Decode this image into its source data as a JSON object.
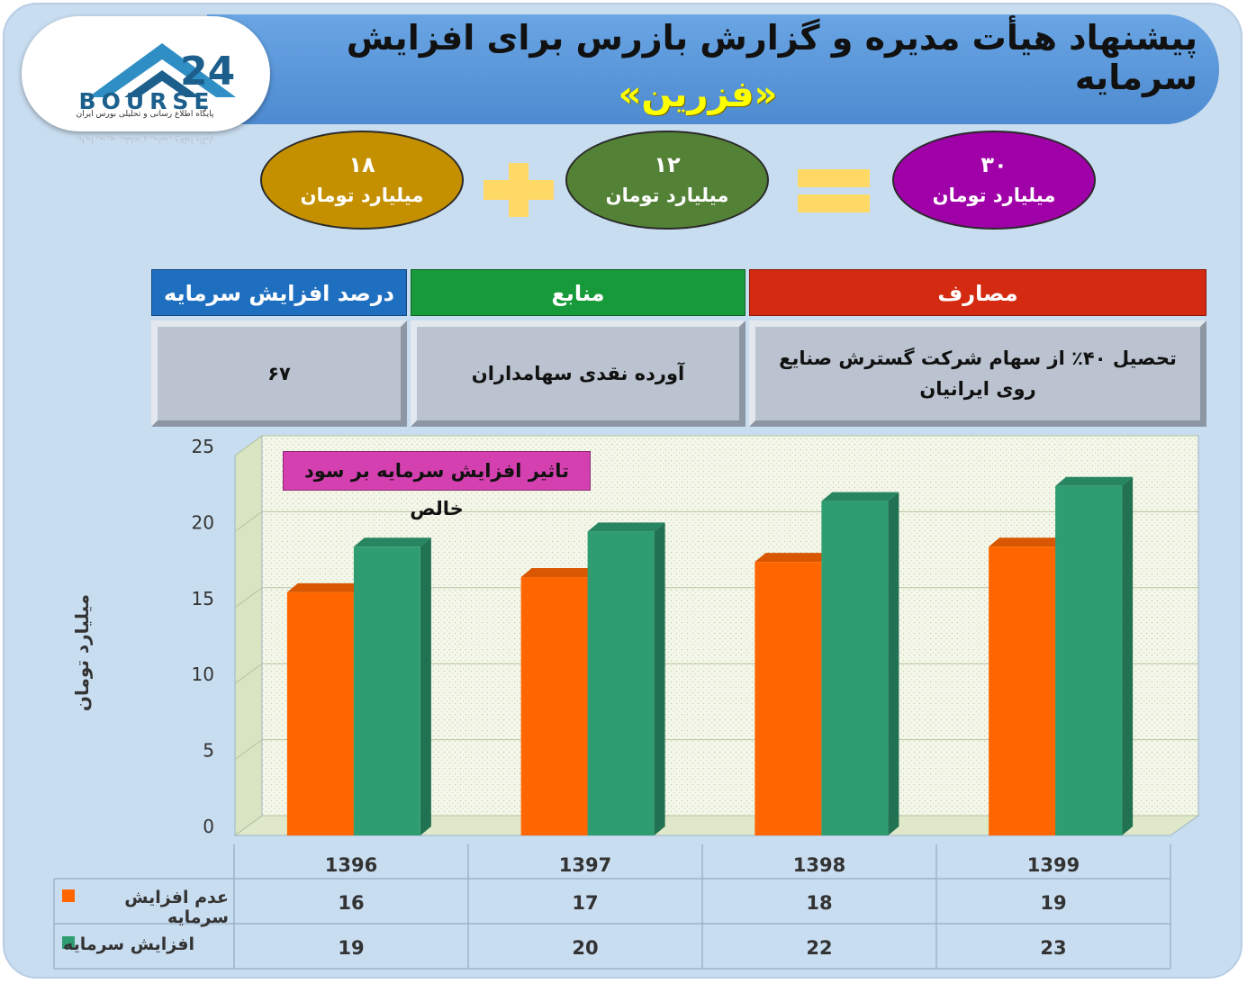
{
  "logo": {
    "word": "BOURSE",
    "subtitle": "پایگاه اطلاع رسانی و تحلیلی بورس ایران"
  },
  "header": {
    "title": "پیشنهاد هیأت مدیره و گزارش بازرس برای افزایش سرمایه",
    "company": "«فزرین»"
  },
  "equation": {
    "left": {
      "value": "۱۸",
      "unit": "میلیارد تومان",
      "color": "#c49000"
    },
    "middle": {
      "value": "۱۲",
      "unit": "میلیارد تومان",
      "color": "#538135"
    },
    "right": {
      "value": "۳۰",
      "unit": "میلیارد تومان",
      "color": "#a000a8"
    },
    "operator_color": "#ffd966"
  },
  "info_table": {
    "headers": {
      "expenses": "مصارف",
      "sources": "منابع",
      "percent": "درصد افزایش سرمایه"
    },
    "header_colors": {
      "expenses": "#d42a12",
      "sources": "#179a3a",
      "percent": "#1f6fc0"
    },
    "values": {
      "expenses": "تحصیل ۴۰٪ از سهام شرکت گسترش صنایع روی ایرانیان",
      "sources": "آورده نقدی سهامداران",
      "percent": "۶۷"
    }
  },
  "chart_data": {
    "type": "bar",
    "title": "تاثیر افزایش سرمایه بر سود خالص",
    "ylabel": "میلیارد تومان",
    "xlabel": "",
    "categories": [
      "1396",
      "1397",
      "1398",
      "1399"
    ],
    "series": [
      {
        "name": "عدم افزایش سرمایه",
        "values": [
          16,
          17,
          18,
          19
        ],
        "color": "#ff6600"
      },
      {
        "name": "افزایش سرمایه",
        "values": [
          19,
          20,
          22,
          23
        ],
        "color": "#2e9e72"
      }
    ],
    "ylim": [
      0,
      25
    ],
    "yticks": [
      0,
      5,
      10,
      15,
      20,
      25
    ],
    "grid": true,
    "legend": "data-table-below"
  }
}
